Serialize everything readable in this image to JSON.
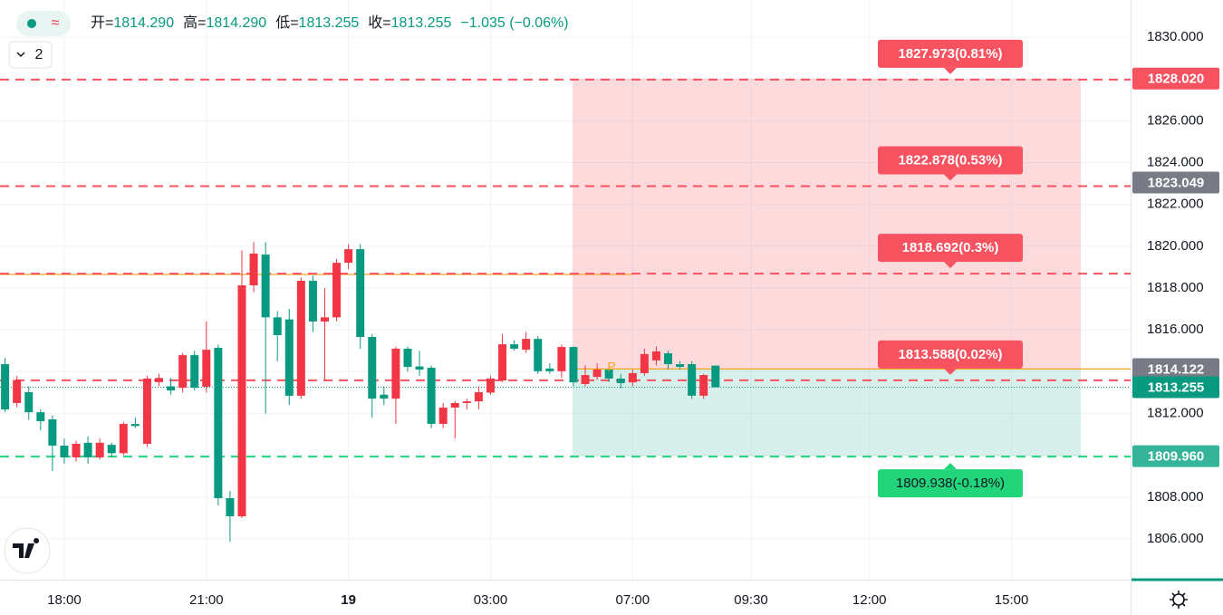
{
  "chart_data": {
    "type": "candlestick",
    "header": {
      "items": [
        {
          "label": "开=",
          "value": "1814.290"
        },
        {
          "label": "高=",
          "value": "1814.290"
        },
        {
          "label": "低=",
          "value": "1813.255"
        },
        {
          "label": "收=",
          "value": "1813.255"
        }
      ],
      "change": "−1.035 (−0.06%)"
    },
    "indicator_count": "2",
    "marker": "P",
    "up_color": "#f23645",
    "down_color": "#089981",
    "categories": [
      null,
      null,
      null,
      null,
      null,
      "18:00",
      null,
      null,
      null,
      null,
      null,
      null,
      null,
      null,
      null,
      null,
      null,
      "21:00",
      null,
      null,
      null,
      null,
      null,
      null,
      null,
      null,
      null,
      null,
      null,
      "19",
      null,
      null,
      null,
      null,
      null,
      null,
      null,
      null,
      null,
      null,
      null,
      "03:00",
      null,
      null,
      null,
      null,
      null,
      null,
      null,
      null,
      null,
      null,
      null,
      "07:00",
      null,
      null,
      null,
      null,
      null,
      null,
      null,
      null,
      null,
      "09:30",
      null,
      null,
      null,
      null,
      null,
      null,
      null,
      null,
      null,
      "12:00",
      null,
      null,
      null,
      null,
      null,
      null,
      null,
      null,
      null,
      null,
      null,
      "15:00",
      null,
      null,
      null,
      null,
      null,
      null,
      null,
      null,
      null
    ],
    "open": [
      1814.36,
      1812.5,
      1813.02,
      1812.06,
      1811.72,
      1810.46,
      1809.9,
      1810.6,
      1809.9,
      1810.5,
      1810.1,
      1811.5,
      1810.55,
      1813.5,
      1813.3,
      1813.23,
      1814.79,
      1813.28,
      1815.14,
      1807.95,
      1807.08,
      1818.13,
      1819.6,
      1816.6,
      1816.5,
      1812.85,
      1818.35,
      1816.4,
      1816.6,
      1819.21,
      1819.86,
      1815.66,
      1812.9,
      1812.71,
      1815.1,
      1814.25,
      1814.19,
      1811.5,
      1812.28,
      1812.5,
      1812.58,
      1813.0,
      1813.58,
      1815.31,
      1815.05,
      1815.57,
      1814.15,
      1814.02,
      1815.18,
      1813.41,
      1813.75,
      1814.1,
      1813.67,
      1813.49,
      1813.93,
      1814.54,
      1814.88,
      1814.36,
      1814.36,
      1812.85,
      1814.29,
      null,
      null,
      null,
      null,
      null,
      null,
      null,
      null,
      null,
      null,
      null,
      null,
      null,
      null,
      null,
      null,
      null,
      null,
      null,
      null,
      null,
      null,
      null,
      null,
      null,
      null,
      null,
      null,
      null,
      null,
      null,
      null,
      null,
      null
    ],
    "high": [
      1814.66,
      1813.8,
      1813.3,
      1812.2,
      1811.9,
      1810.8,
      1810.7,
      1810.9,
      1810.8,
      1810.6,
      1811.6,
      1811.8,
      1813.8,
      1813.9,
      1813.7,
      1814.9,
      1815.0,
      1816.4,
      1815.3,
      1808.3,
      1819.8,
      1820.2,
      1820.2,
      1816.9,
      1817.0,
      1818.5,
      1818.6,
      1818.0,
      1819.4,
      1820.1,
      1820.1,
      1815.8,
      1813.3,
      1815.2,
      1815.2,
      1815.0,
      1814.3,
      1812.5,
      1812.6,
      1812.7,
      1813.3,
      1813.8,
      1815.8,
      1815.5,
      1815.9,
      1815.7,
      1814.4,
      1815.3,
      1815.2,
      1814.3,
      1814.4,
      1814.3,
      1813.9,
      1814.1,
      1815.1,
      1815.2,
      1815.0,
      1814.5,
      1814.5,
      1813.9,
      1814.29,
      null,
      null,
      null,
      null,
      null,
      null,
      null,
      null,
      null,
      null,
      null,
      null,
      null,
      null,
      null,
      null,
      null,
      null,
      null,
      null,
      null,
      null,
      null,
      null,
      null,
      null,
      null,
      null,
      null,
      null,
      null,
      null,
      null,
      null
    ],
    "low": [
      1812.06,
      1812.3,
      1811.7,
      1811.2,
      1809.25,
      1809.6,
      1809.7,
      1809.6,
      1809.8,
      1809.9,
      1810.0,
      1811.3,
      1810.4,
      1813.3,
      1812.9,
      1813.0,
      1813.1,
      1813.0,
      1807.6,
      1805.87,
      1807.0,
      1817.8,
      1812.0,
      1814.5,
      1812.4,
      1812.7,
      1815.9,
      1813.6,
      1816.4,
      1818.9,
      1815.1,
      1811.8,
      1812.4,
      1811.5,
      1814.0,
      1813.8,
      1811.3,
      1811.3,
      1810.8,
      1812.2,
      1812.2,
      1812.9,
      1813.5,
      1815.0,
      1814.9,
      1813.9,
      1813.9,
      1813.7,
      1813.3,
      1813.3,
      1813.6,
      1813.5,
      1813.2,
      1813.3,
      1813.8,
      1814.3,
      1814.1,
      1814.1,
      1812.7,
      1812.7,
      1813.255,
      null,
      null,
      null,
      null,
      null,
      null,
      null,
      null,
      null,
      null,
      null,
      null,
      null,
      null,
      null,
      null,
      null,
      null,
      null,
      null,
      null,
      null,
      null,
      null,
      null,
      null,
      null,
      null,
      null,
      null,
      null,
      null,
      null,
      null
    ],
    "close": [
      1812.19,
      1813.6,
      1812.06,
      1811.63,
      1810.46,
      1809.9,
      1810.55,
      1809.9,
      1810.6,
      1810.1,
      1811.5,
      1811.4,
      1813.67,
      1813.7,
      1813.1,
      1814.79,
      1813.23,
      1815.05,
      1807.95,
      1807.08,
      1818.13,
      1819.65,
      1816.6,
      1815.75,
      1812.85,
      1818.35,
      1816.4,
      1816.6,
      1819.21,
      1819.86,
      1815.66,
      1812.71,
      1812.71,
      1815.1,
      1814.23,
      1814.1,
      1811.5,
      1812.28,
      1812.5,
      1812.58,
      1813.02,
      1813.67,
      1815.31,
      1815.1,
      1815.57,
      1814.02,
      1814.02,
      1815.18,
      1813.49,
      1813.84,
      1814.1,
      1813.67,
      1813.45,
      1813.93,
      1814.84,
      1814.97,
      1814.36,
      1814.23,
      1812.85,
      1813.84,
      1813.255,
      null,
      null,
      null,
      null,
      null,
      null,
      null,
      null,
      null,
      null,
      null,
      null,
      null,
      null,
      null,
      null,
      null,
      null,
      null,
      null,
      null,
      null,
      null,
      null,
      null,
      null,
      null,
      null,
      null,
      null,
      null,
      null,
      null,
      null
    ],
    "ylim": [
      1804.05,
      1831.78
    ],
    "yticks": [
      {
        "value": 1806,
        "label": "1806.000"
      },
      {
        "value": 1808,
        "label": "1808.000"
      },
      {
        "value": 1810,
        "label": "1810.000"
      },
      {
        "value": 1812,
        "label": "1812.000"
      },
      {
        "value": 1814,
        "label": "1814.000"
      },
      {
        "value": 1816,
        "label": "1816.000"
      },
      {
        "value": 1818,
        "label": "1818.000"
      },
      {
        "value": 1820,
        "label": "1820.000"
      },
      {
        "value": 1822,
        "label": "1822.000"
      },
      {
        "value": 1824,
        "label": "1824.000"
      },
      {
        "value": 1826,
        "label": "1826.000"
      },
      {
        "value": 1828,
        "label": "1828.000"
      },
      {
        "value": 1830,
        "label": "1830.000"
      }
    ],
    "grid": true,
    "zones": [
      {
        "from": 1814.122,
        "to": 1828.02,
        "color": "#f23645"
      },
      {
        "from": 1809.96,
        "to": 1814.122,
        "color": "#22ab94"
      }
    ],
    "hlines": [
      {
        "value": 1818.65,
        "color": "#f7a21b"
      },
      {
        "value": 1814.13,
        "color": "#f7a21b"
      }
    ],
    "targets": [
      {
        "value": 1827.973,
        "label": "1827.973(0.81%)",
        "color": "#f7525f"
      },
      {
        "value": 1822.878,
        "label": "1822.878(0.53%)",
        "color": "#f7525f"
      },
      {
        "value": 1818.692,
        "label": "1818.692(0.3%)",
        "color": "#f7525f"
      },
      {
        "value": 1813.588,
        "label": "1813.588(0.02%)",
        "color": "#f7525f"
      },
      {
        "value": 1809.938,
        "label": "1809.938(-0.18%)",
        "color": "#22d47a"
      }
    ],
    "price_tags": [
      {
        "value": 1828.02,
        "label": "1828.020",
        "color": "#f7525f"
      },
      {
        "value": 1823.049,
        "label": "1823.049",
        "color": "#787b86"
      },
      {
        "value": 1814.122,
        "label": "1814.122",
        "color": "#787b86"
      },
      {
        "value": 1813.255,
        "label": "1813.255",
        "color": "#089981"
      },
      {
        "value": 1809.96,
        "label": "1809.960",
        "color": "#36b49a"
      }
    ]
  }
}
